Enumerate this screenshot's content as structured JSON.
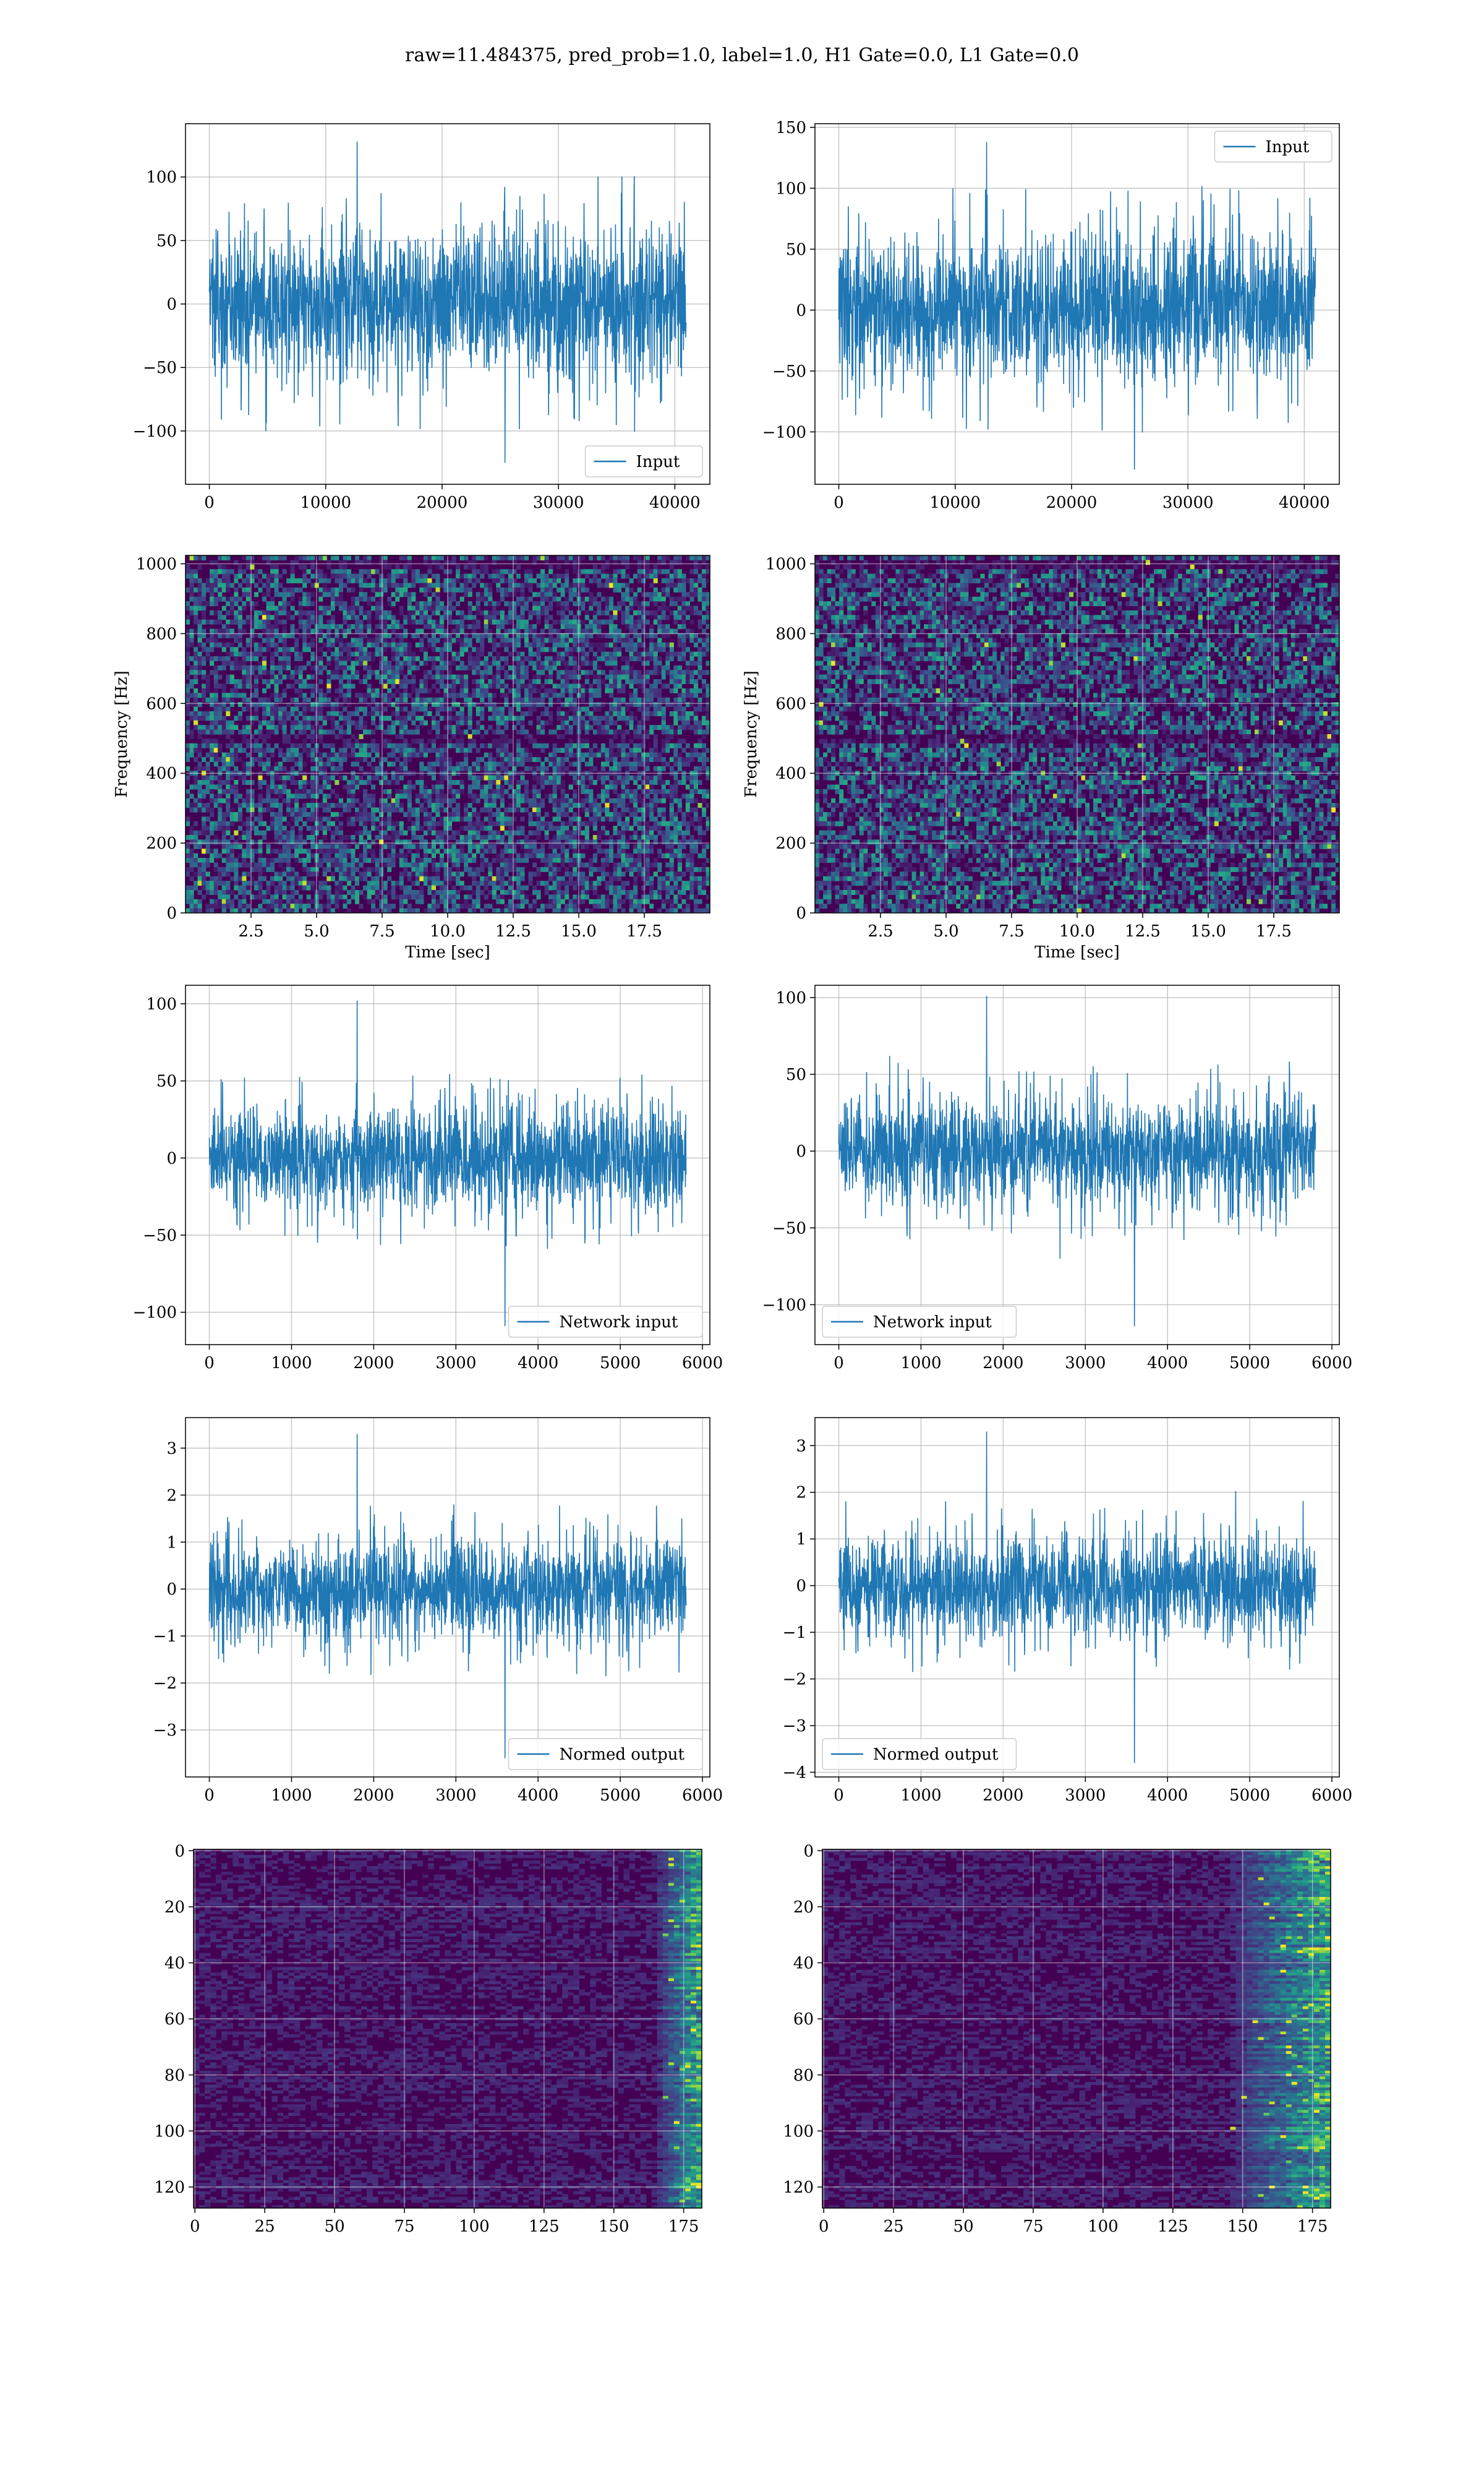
{
  "figure": {
    "suptitle": "raw=11.484375, pred_prob=1.0, label=1.0, H1 Gate=0.0, L1 Gate=0.0"
  },
  "colors": {
    "line": "#1f77b4",
    "grid": "#b0b0b0",
    "viridis_dark": "#440154",
    "viridis_mid": "#21918c",
    "viridis_bright": "#fde725"
  },
  "chart_data": [
    {
      "id": "input-h1",
      "type": "line",
      "legend": "Input",
      "legend_loc": "lower right",
      "x_range": [
        0,
        40960
      ],
      "xlim": [
        -2048,
        43008
      ],
      "ylim": [
        -142,
        142
      ],
      "xticks": [
        0,
        10000,
        20000,
        30000,
        40000
      ],
      "xtick_labels": [
        "0",
        "10000",
        "20000",
        "30000",
        "40000"
      ],
      "yticks": [
        -100,
        -50,
        0,
        50,
        100
      ],
      "ytick_labels": [
        "−100",
        "−50",
        "0",
        "50",
        "100"
      ],
      "envelope": {
        "core": 65,
        "peak": 128,
        "trough": -125
      },
      "grid": true
    },
    {
      "id": "input-l1",
      "type": "line",
      "legend": "Input",
      "legend_loc": "upper right",
      "x_range": [
        0,
        40960
      ],
      "xlim": [
        -2048,
        43008
      ],
      "ylim": [
        -143,
        153
      ],
      "xticks": [
        0,
        10000,
        20000,
        30000,
        40000
      ],
      "xtick_labels": [
        "0",
        "10000",
        "20000",
        "30000",
        "40000"
      ],
      "yticks": [
        -100,
        -50,
        0,
        50,
        100,
        150
      ],
      "ytick_labels": [
        "−100",
        "−50",
        "0",
        "50",
        "100",
        "150"
      ],
      "envelope": {
        "core": 65,
        "peak": 138,
        "trough": -131
      },
      "grid": true
    },
    {
      "id": "spectrogram-h1",
      "type": "heatmap",
      "xlabel": "Time [sec]",
      "ylabel": "Frequency [Hz]",
      "xlim": [
        0,
        20
      ],
      "ylim": [
        0,
        1024
      ],
      "xticks": [
        2.5,
        5,
        7.5,
        10,
        12.5,
        15,
        17.5
      ],
      "xtick_labels": [
        "2.5",
        "5.0",
        "7.5",
        "10.0",
        "12.5",
        "15.0",
        "17.5"
      ],
      "yticks": [
        0,
        200,
        400,
        600,
        800,
        1000
      ],
      "ytick_labels": [
        "0",
        "200",
        "400",
        "600",
        "800",
        "1000"
      ],
      "colormap": "viridis",
      "grid": true,
      "dark_bands_hz": [
        500,
        1000
      ]
    },
    {
      "id": "spectrogram-l1",
      "type": "heatmap",
      "xlabel": "Time [sec]",
      "ylabel": "Frequency [Hz]",
      "xlim": [
        0,
        20
      ],
      "ylim": [
        0,
        1024
      ],
      "xticks": [
        2.5,
        5,
        7.5,
        10,
        12.5,
        15,
        17.5
      ],
      "xtick_labels": [
        "2.5",
        "5.0",
        "7.5",
        "10.0",
        "12.5",
        "15.0",
        "17.5"
      ],
      "yticks": [
        0,
        200,
        400,
        600,
        800,
        1000
      ],
      "ytick_labels": [
        "0",
        "200",
        "400",
        "600",
        "800",
        "1000"
      ],
      "colormap": "viridis",
      "grid": true,
      "dark_bands_hz": [
        500,
        1000
      ]
    },
    {
      "id": "network-input-h1",
      "type": "line",
      "legend": "Network input",
      "legend_loc": "lower right",
      "x_range": [
        0,
        5800
      ],
      "xlim": [
        -290,
        6090
      ],
      "ylim": [
        -121,
        112
      ],
      "xticks": [
        0,
        1000,
        2000,
        3000,
        4000,
        5000,
        6000
      ],
      "xtick_labels": [
        "0",
        "1000",
        "2000",
        "3000",
        "4000",
        "5000",
        "6000"
      ],
      "yticks": [
        -100,
        -50,
        0,
        50,
        100
      ],
      "ytick_labels": [
        "−100",
        "−50",
        "0",
        "50",
        "100"
      ],
      "envelope": {
        "core": 38,
        "peak": 102,
        "trough": -109
      },
      "grid": true
    },
    {
      "id": "network-input-l1",
      "type": "line",
      "legend": "Network input",
      "legend_loc": "lower left",
      "x_range": [
        0,
        5800
      ],
      "xlim": [
        -290,
        6090
      ],
      "ylim": [
        -126,
        108
      ],
      "xticks": [
        0,
        1000,
        2000,
        3000,
        4000,
        5000,
        6000
      ],
      "xtick_labels": [
        "0",
        "1000",
        "2000",
        "3000",
        "4000",
        "5000",
        "6000"
      ],
      "yticks": [
        -100,
        -50,
        0,
        50,
        100
      ],
      "ytick_labels": [
        "−100",
        "−50",
        "0",
        "50",
        "100"
      ],
      "envelope": {
        "core": 38,
        "peak": 101,
        "trough": -114
      },
      "grid": true
    },
    {
      "id": "normed-output-h1",
      "type": "line",
      "legend": "Normed output",
      "legend_loc": "lower right",
      "x_range": [
        0,
        5800
      ],
      "xlim": [
        -290,
        6090
      ],
      "ylim": [
        -4.0,
        3.65
      ],
      "xticks": [
        0,
        1000,
        2000,
        3000,
        4000,
        5000,
        6000
      ],
      "xtick_labels": [
        "0",
        "1000",
        "2000",
        "3000",
        "4000",
        "5000",
        "6000"
      ],
      "yticks": [
        -3,
        -2,
        -1,
        0,
        1,
        2,
        3
      ],
      "ytick_labels": [
        "−3",
        "−2",
        "−1",
        "0",
        "1",
        "2",
        "3"
      ],
      "envelope": {
        "core": 1.2,
        "peak": 3.3,
        "trough": -3.6
      },
      "grid": true
    },
    {
      "id": "normed-output-l1",
      "type": "line",
      "legend": "Normed output",
      "legend_loc": "lower left",
      "x_range": [
        0,
        5800
      ],
      "xlim": [
        -290,
        6090
      ],
      "ylim": [
        -4.1,
        3.6
      ],
      "xticks": [
        0,
        1000,
        2000,
        3000,
        4000,
        5000,
        6000
      ],
      "xtick_labels": [
        "0",
        "1000",
        "2000",
        "3000",
        "4000",
        "5000",
        "6000"
      ],
      "yticks": [
        -4,
        -3,
        -2,
        -1,
        0,
        1,
        2,
        3
      ],
      "ytick_labels": [
        "−4",
        "−3",
        "−2",
        "−1",
        "0",
        "1",
        "2",
        "3"
      ],
      "envelope": {
        "core": 1.2,
        "peak": 3.3,
        "trough": -3.8
      },
      "grid": true
    },
    {
      "id": "feature-map-h1",
      "type": "heatmap",
      "xlim": [
        -0.5,
        181.5
      ],
      "ylim": [
        127.5,
        -0.5
      ],
      "xticks": [
        0,
        25,
        50,
        75,
        100,
        125,
        150,
        175
      ],
      "xtick_labels": [
        "0",
        "25",
        "50",
        "75",
        "100",
        "125",
        "150",
        "175"
      ],
      "yticks": [
        0,
        20,
        40,
        60,
        80,
        100,
        120
      ],
      "ytick_labels": [
        "0",
        "20",
        "40",
        "60",
        "80",
        "100",
        "120"
      ],
      "colormap": "viridis",
      "grid": true,
      "bright_from_col": 165
    },
    {
      "id": "feature-map-l1",
      "type": "heatmap",
      "xlim": [
        -0.5,
        181.5
      ],
      "ylim": [
        127.5,
        -0.5
      ],
      "xticks": [
        0,
        25,
        50,
        75,
        100,
        125,
        150,
        175
      ],
      "xtick_labels": [
        "0",
        "25",
        "50",
        "75",
        "100",
        "125",
        "150",
        "175"
      ],
      "yticks": [
        0,
        20,
        40,
        60,
        80,
        100,
        120
      ],
      "ytick_labels": [
        "0",
        "20",
        "40",
        "60",
        "80",
        "100",
        "120"
      ],
      "colormap": "viridis",
      "grid": true,
      "bright_from_col": 145
    }
  ]
}
